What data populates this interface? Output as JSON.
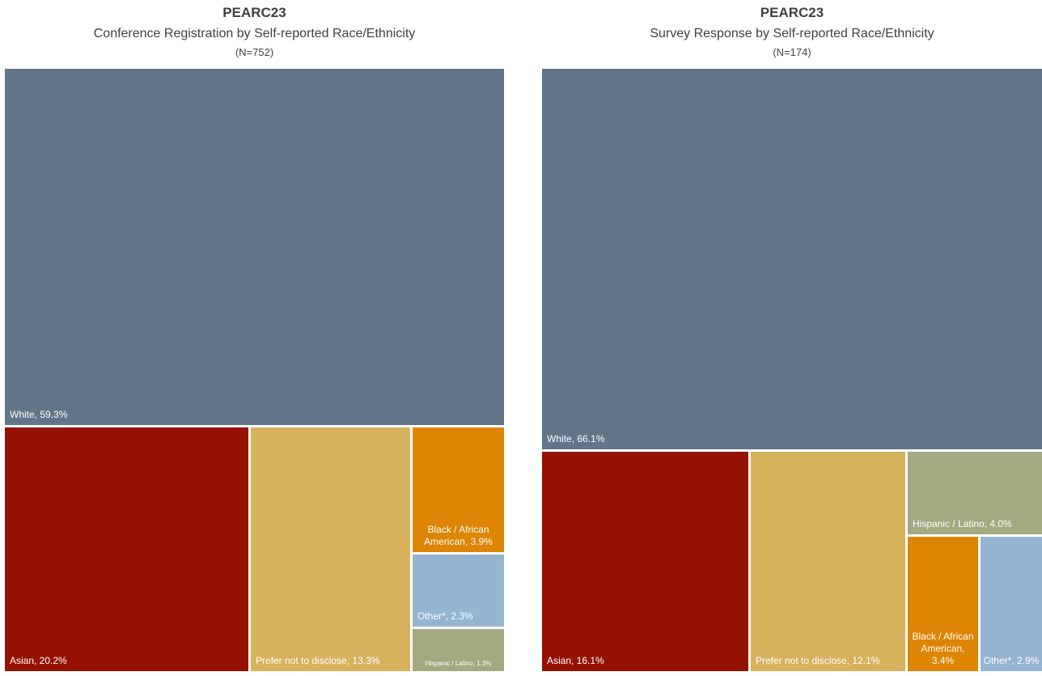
{
  "chart_data": [
    {
      "type": "treemap",
      "title": "PEARC23",
      "subtitle": "Conference Registration by Self-reported Race/Ethnicity",
      "n_label": "(N=752)",
      "series": [
        {
          "name": "White",
          "value": 59.3,
          "label": "White, 59.3%",
          "color": "#607587"
        },
        {
          "name": "Asian",
          "value": 20.2,
          "label": "Asian, 20.2%",
          "color": "#951100"
        },
        {
          "name": "Prefer not to disclose",
          "value": 13.3,
          "label": "Prefer not to disclose, 13.3%",
          "color": "#D7B15C"
        },
        {
          "name": "Black / African American",
          "value": 3.9,
          "label": "Black / African American, 3.9%",
          "color": "#DE8505"
        },
        {
          "name": "Other*",
          "value": 2.3,
          "label": "Other*, 2.3%",
          "color": "#94B4D1"
        },
        {
          "name": "Hispanic / Latino",
          "value": 1.3,
          "label": "Hispanic / Latino, 1.3%",
          "color": "#A3A981"
        }
      ]
    },
    {
      "type": "treemap",
      "title": "PEARC23",
      "subtitle": "Survey Response by Self-reported Race/Ethnicity",
      "n_label": "(N=174)",
      "series": [
        {
          "name": "White",
          "value": 66.1,
          "label": "White, 66.1%",
          "color": "#607587"
        },
        {
          "name": "Asian",
          "value": 16.1,
          "label": "Asian, 16.1%",
          "color": "#951100"
        },
        {
          "name": "Prefer not to disclose",
          "value": 12.1,
          "label": "Prefer not to disclose, 12.1%",
          "color": "#D7B15C"
        },
        {
          "name": "Hispanic / Latino",
          "value": 4.0,
          "label": "Hispanic / Latino, 4.0%",
          "color": "#A3A981"
        },
        {
          "name": "Black / African American",
          "value": 3.4,
          "label": "Black / African American, 3.4%",
          "color": "#DE8505"
        },
        {
          "name": "Other*",
          "value": 2.9,
          "label": "Other*, 2.9%",
          "color": "#94B4D1"
        }
      ]
    }
  ]
}
